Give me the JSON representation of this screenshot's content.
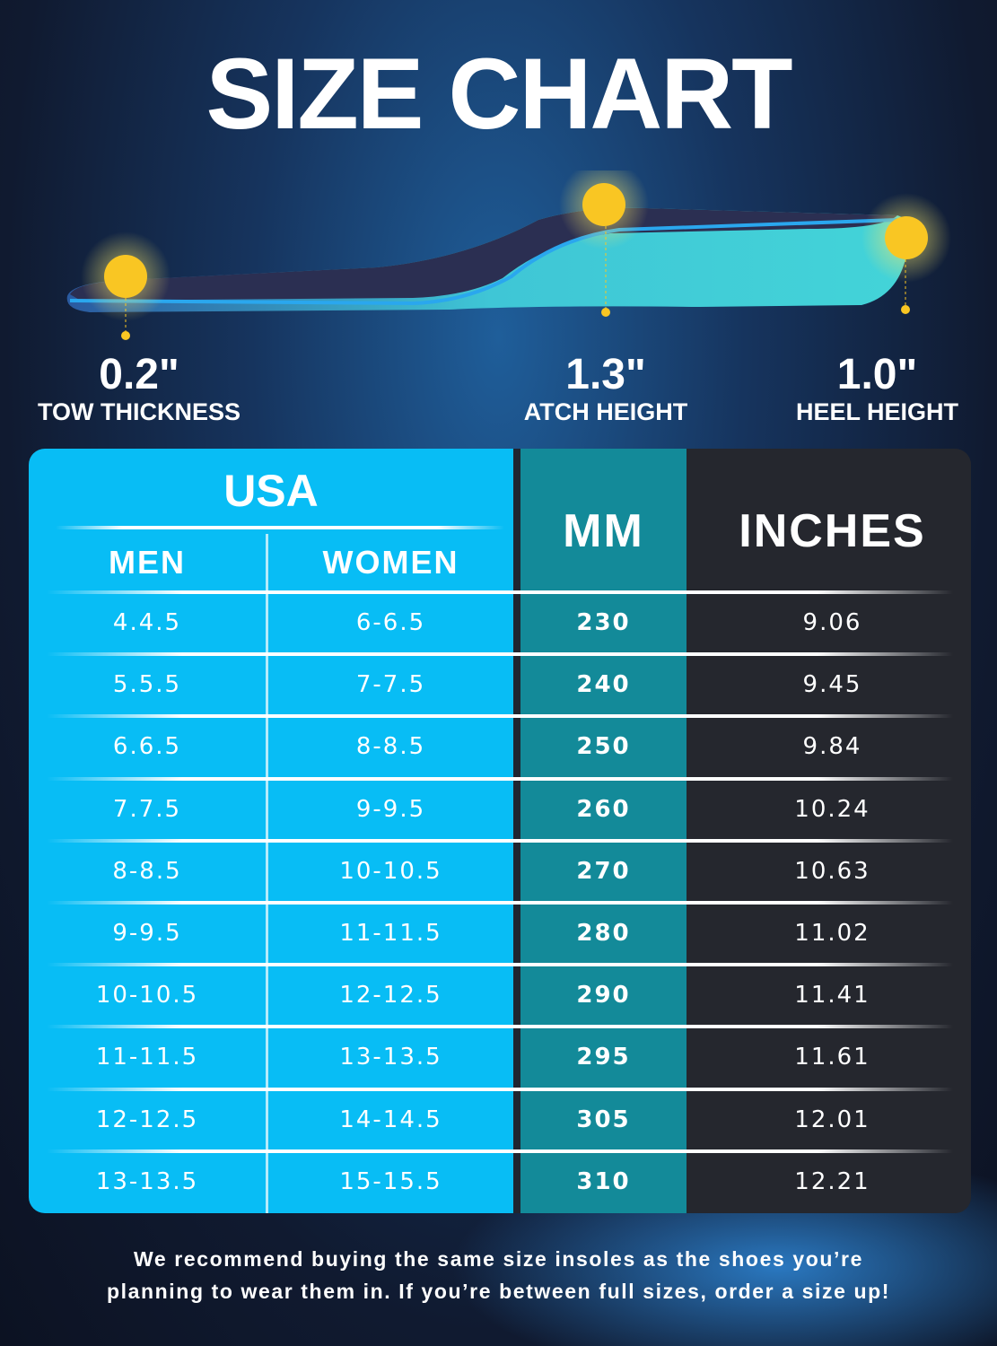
{
  "title": "SIZE CHART",
  "measurements": [
    {
      "value": "0.2\"",
      "label": "TOW THICKNESS"
    },
    {
      "value": "1.3\"",
      "label": "ATCH HEIGHT"
    },
    {
      "value": "1.0\"",
      "label": "HEEL HEIGHT"
    }
  ],
  "colors": {
    "usa": "#08bdf5",
    "mm": "#138a99",
    "inches": "#25272e",
    "marker": "#f9c623"
  },
  "table": {
    "headers": {
      "usa": "USA",
      "men": "MEN",
      "women": "WOMEN",
      "mm": "MM",
      "inches": "INCHES"
    },
    "rows": [
      {
        "men": "4.4.5",
        "women": "6-6.5",
        "mm": "230",
        "inches": "9.06"
      },
      {
        "men": "5.5.5",
        "women": "7-7.5",
        "mm": "240",
        "inches": "9.45"
      },
      {
        "men": "6.6.5",
        "women": "8-8.5",
        "mm": "250",
        "inches": "9.84"
      },
      {
        "men": "7.7.5",
        "women": "9-9.5",
        "mm": "260",
        "inches": "10.24"
      },
      {
        "men": "8-8.5",
        "women": "10-10.5",
        "mm": "270",
        "inches": "10.63"
      },
      {
        "men": "9-9.5",
        "women": "11-11.5",
        "mm": "280",
        "inches": "11.02"
      },
      {
        "men": "10-10.5",
        "women": "12-12.5",
        "mm": "290",
        "inches": "11.41"
      },
      {
        "men": "11-11.5",
        "women": "13-13.5",
        "mm": "295",
        "inches": "11.61"
      },
      {
        "men": "12-12.5",
        "women": "14-14.5",
        "mm": "305",
        "inches": "12.01"
      },
      {
        "men": "13-13.5",
        "women": "15-15.5",
        "mm": "310",
        "inches": "12.21"
      }
    ]
  },
  "note": {
    "line1": "We recommend buying the same size insoles as the shoes you’re",
    "line2": "planning to wear them in. If you’re between full sizes, order a size up!"
  }
}
